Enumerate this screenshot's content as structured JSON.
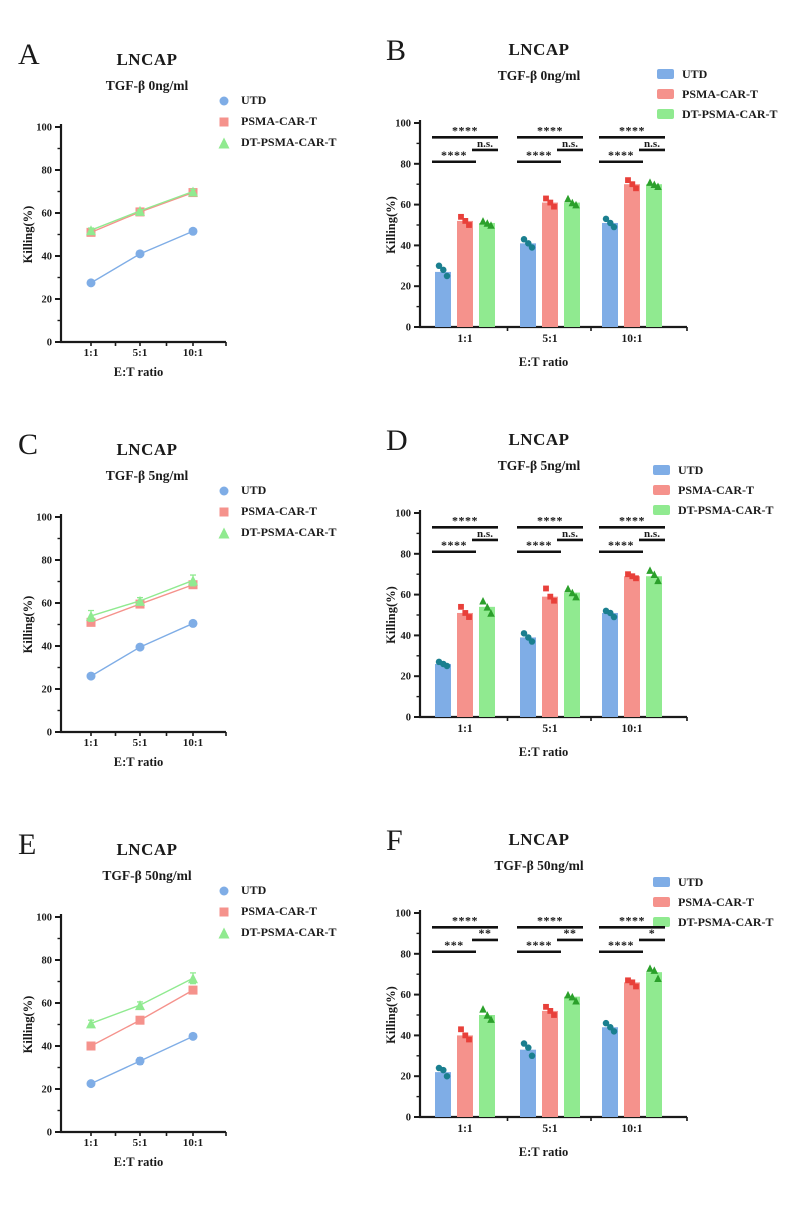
{
  "page": {
    "background": "#ffffff"
  },
  "chart_data": [
    {
      "panel": "A",
      "type": "line",
      "title": "LNCAP",
      "subtitle": "TGF-β 0ng/ml",
      "xlabel": "E:T ratio",
      "ylabel": "Killing(%)",
      "ylim": [
        0,
        100
      ],
      "ytick_major": 20,
      "ytick_minor": 10,
      "categories": [
        "1:1",
        "5:1",
        "10:1"
      ],
      "legend_position": "top-right",
      "series": [
        {
          "name": "UTD",
          "marker": "circle",
          "color": "#7FADE6",
          "point_color": "#1A7F8F",
          "values": [
            27.5,
            41,
            51.5
          ],
          "errors": [
            0,
            0,
            0
          ]
        },
        {
          "name": "PSMA-CAR-T",
          "marker": "square",
          "color": "#F5928C",
          "point_color": "#E8403A",
          "values": [
            51,
            60.5,
            69.5
          ],
          "errors": [
            0,
            0,
            0
          ]
        },
        {
          "name": "DT-PSMA-CAR-T",
          "marker": "triangle",
          "color": "#90EA90",
          "point_color": "#2BA02B",
          "values": [
            52,
            61,
            70
          ],
          "errors": [
            1,
            0.5,
            1
          ]
        }
      ]
    },
    {
      "panel": "B",
      "type": "bar",
      "title": "LNCAP",
      "subtitle": "TGF-β 0ng/ml",
      "xlabel": "E:T ratio",
      "ylabel": "Killing(%)",
      "ylim": [
        0,
        100
      ],
      "ytick_major": 20,
      "ytick_minor": 10,
      "categories": [
        "1:1",
        "5:1",
        "10:1"
      ],
      "legend_position": "top-right",
      "series": [
        {
          "name": "UTD",
          "marker": "circle",
          "color": "#7FADE6",
          "point_color": "#1A7F8F",
          "values": [
            27,
            41,
            51
          ],
          "points": [
            [
              30,
              28,
              25
            ],
            [
              43,
              41,
              39
            ],
            [
              53,
              51,
              49
            ]
          ]
        },
        {
          "name": "PSMA-CAR-T",
          "marker": "square",
          "color": "#F5928C",
          "point_color": "#E8403A",
          "values": [
            52,
            61,
            70
          ],
          "points": [
            [
              54,
              52,
              50
            ],
            [
              63,
              61,
              59
            ],
            [
              72,
              70,
              68
            ]
          ]
        },
        {
          "name": "DT-PSMA-CAR-T",
          "marker": "triangle",
          "color": "#90EA90",
          "point_color": "#2BA02B",
          "values": [
            51,
            61,
            70
          ],
          "points": [
            [
              52,
              51,
              50
            ],
            [
              63,
              61,
              60
            ],
            [
              71,
              70,
              69
            ]
          ]
        }
      ],
      "significance": {
        "comparisons": [
          "UTD vs PSMA-CAR-T",
          "UTD vs DT-PSMA-CAR-T",
          "PSMA-CAR-T vs DT-PSMA-CAR-T"
        ],
        "groups": [
          [
            "****",
            "****",
            "n.s."
          ],
          [
            "****",
            "****",
            "n.s."
          ],
          [
            "****",
            "****",
            "n.s."
          ]
        ]
      }
    },
    {
      "panel": "C",
      "type": "line",
      "title": "LNCAP",
      "subtitle": "TGF-β 5ng/ml",
      "xlabel": "E:T ratio",
      "ylabel": "Killing(%)",
      "ylim": [
        0,
        100
      ],
      "ytick_major": 20,
      "ytick_minor": 10,
      "categories": [
        "1:1",
        "5:1",
        "10:1"
      ],
      "legend_position": "top-right",
      "series": [
        {
          "name": "UTD",
          "marker": "circle",
          "color": "#7FADE6",
          "point_color": "#1A7F8F",
          "values": [
            26,
            39.5,
            50.5
          ],
          "errors": [
            0,
            0,
            1
          ]
        },
        {
          "name": "PSMA-CAR-T",
          "marker": "square",
          "color": "#F5928C",
          "point_color": "#E8403A",
          "values": [
            51,
            59.5,
            68.5
          ],
          "errors": [
            1.5,
            1,
            1
          ]
        },
        {
          "name": "DT-PSMA-CAR-T",
          "marker": "triangle",
          "color": "#90EA90",
          "point_color": "#2BA02B",
          "values": [
            54,
            61,
            70.5
          ],
          "errors": [
            2.5,
            1.5,
            2.5
          ]
        }
      ]
    },
    {
      "panel": "D",
      "type": "bar",
      "title": "LNCAP",
      "subtitle": "TGF-β 5ng/ml",
      "xlabel": "E:T ratio",
      "ylabel": "Killing(%)",
      "ylim": [
        0,
        100
      ],
      "ytick_major": 20,
      "ytick_minor": 10,
      "categories": [
        "1:1",
        "5:1",
        "10:1"
      ],
      "legend_position": "top-right",
      "series": [
        {
          "name": "UTD",
          "marker": "circle",
          "color": "#7FADE6",
          "point_color": "#1A7F8F",
          "values": [
            26,
            39,
            51
          ],
          "points": [
            [
              27,
              26,
              25
            ],
            [
              41,
              39,
              37
            ],
            [
              52,
              51,
              49
            ]
          ]
        },
        {
          "name": "PSMA-CAR-T",
          "marker": "square",
          "color": "#F5928C",
          "point_color": "#E8403A",
          "values": [
            51,
            59,
            69
          ],
          "points": [
            [
              54,
              51,
              49
            ],
            [
              63,
              59,
              57
            ],
            [
              70,
              69,
              68
            ]
          ]
        },
        {
          "name": "DT-PSMA-CAR-T",
          "marker": "triangle",
          "color": "#90EA90",
          "point_color": "#2BA02B",
          "values": [
            54,
            61,
            69
          ],
          "points": [
            [
              57,
              54,
              51
            ],
            [
              63,
              61,
              59
            ],
            [
              72,
              70,
              67
            ]
          ]
        }
      ],
      "significance": {
        "comparisons": [
          "UTD vs PSMA-CAR-T",
          "UTD vs DT-PSMA-CAR-T",
          "PSMA-CAR-T vs DT-PSMA-CAR-T"
        ],
        "groups": [
          [
            "****",
            "****",
            "n.s."
          ],
          [
            "****",
            "****",
            "n.s."
          ],
          [
            "****",
            "****",
            "n.s."
          ]
        ]
      }
    },
    {
      "panel": "E",
      "type": "line",
      "title": "LNCAP",
      "subtitle": "TGF-β 50ng/ml",
      "xlabel": "E:T ratio",
      "ylabel": "Killing(%)",
      "ylim": [
        0,
        100
      ],
      "ytick_major": 20,
      "ytick_minor": 10,
      "categories": [
        "1:1",
        "5:1",
        "10:1"
      ],
      "legend_position": "top-right",
      "series": [
        {
          "name": "UTD",
          "marker": "circle",
          "color": "#7FADE6",
          "point_color": "#1A7F8F",
          "values": [
            22.5,
            33,
            44.5
          ],
          "errors": [
            0,
            1.5,
            0
          ]
        },
        {
          "name": "PSMA-CAR-T",
          "marker": "square",
          "color": "#F5928C",
          "point_color": "#E8403A",
          "values": [
            40,
            52,
            66
          ],
          "errors": [
            1,
            1,
            1
          ]
        },
        {
          "name": "DT-PSMA-CAR-T",
          "marker": "triangle",
          "color": "#90EA90",
          "point_color": "#2BA02B",
          "values": [
            50.5,
            59,
            71.5
          ],
          "errors": [
            1.5,
            1.5,
            2.5
          ]
        }
      ]
    },
    {
      "panel": "F",
      "type": "bar",
      "title": "LNCAP",
      "subtitle": "TGF-β 50ng/ml",
      "xlabel": "E:T ratio",
      "ylabel": "Killing(%)",
      "ylim": [
        0,
        100
      ],
      "ytick_major": 20,
      "ytick_minor": 10,
      "categories": [
        "1:1",
        "5:1",
        "10:1"
      ],
      "legend_position": "top-right",
      "series": [
        {
          "name": "UTD",
          "marker": "circle",
          "color": "#7FADE6",
          "point_color": "#1A7F8F",
          "values": [
            22,
            33,
            44
          ],
          "points": [
            [
              24,
              23,
              20
            ],
            [
              36,
              34,
              30
            ],
            [
              46,
              44,
              42
            ]
          ]
        },
        {
          "name": "PSMA-CAR-T",
          "marker": "square",
          "color": "#F5928C",
          "point_color": "#E8403A",
          "values": [
            40,
            52,
            66
          ],
          "points": [
            [
              43,
              40,
              38
            ],
            [
              54,
              52,
              50
            ],
            [
              67,
              66,
              64
            ]
          ]
        },
        {
          "name": "DT-PSMA-CAR-T",
          "marker": "triangle",
          "color": "#90EA90",
          "point_color": "#2BA02B",
          "values": [
            50,
            59,
            71
          ],
          "points": [
            [
              53,
              50,
              48
            ],
            [
              60,
              59,
              57
            ],
            [
              73,
              72,
              68
            ]
          ]
        }
      ],
      "significance": {
        "comparisons": [
          "UTD vs PSMA-CAR-T",
          "UTD vs DT-PSMA-CAR-T",
          "PSMA-CAR-T vs DT-PSMA-CAR-T"
        ],
        "groups": [
          [
            "***",
            "****",
            "**"
          ],
          [
            "****",
            "****",
            "**"
          ],
          [
            "****",
            "****",
            "*"
          ]
        ]
      }
    }
  ]
}
